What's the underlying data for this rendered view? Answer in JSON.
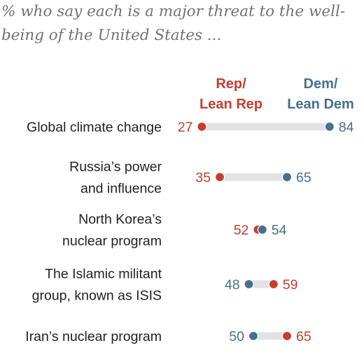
{
  "title": "% who say each is a major threat to the well-being of the United States ...",
  "colors": {
    "rep": "#c63d2e",
    "dem": "#45708f",
    "track": "#e3e3e3",
    "text": "#222222"
  },
  "chart_data": {
    "type": "dot",
    "xlim": [
      0,
      100
    ],
    "series": [
      {
        "name": "Rep/ Lean Rep",
        "label_lines": [
          "Rep/",
          "Lean Rep"
        ],
        "key": "rep"
      },
      {
        "name": "Dem/ Lean Dem",
        "label_lines": [
          "Dem/",
          "Lean Dem"
        ],
        "key": "dem"
      }
    ],
    "rows": [
      {
        "label_lines": [
          "Global climate change"
        ],
        "rep": 27,
        "dem": 84
      },
      {
        "label_lines": [
          "Russia’s power",
          "and influence"
        ],
        "rep": 35,
        "dem": 65
      },
      {
        "label_lines": [
          "North Korea’s",
          "nuclear program"
        ],
        "rep": 52,
        "dem": 54
      },
      {
        "label_lines": [
          "The Islamic militant",
          "group, known as ISIS"
        ],
        "rep": 59,
        "dem": 48
      },
      {
        "label_lines": [
          "Iran’s nuclear program"
        ],
        "rep": 65,
        "dem": 50
      }
    ]
  }
}
